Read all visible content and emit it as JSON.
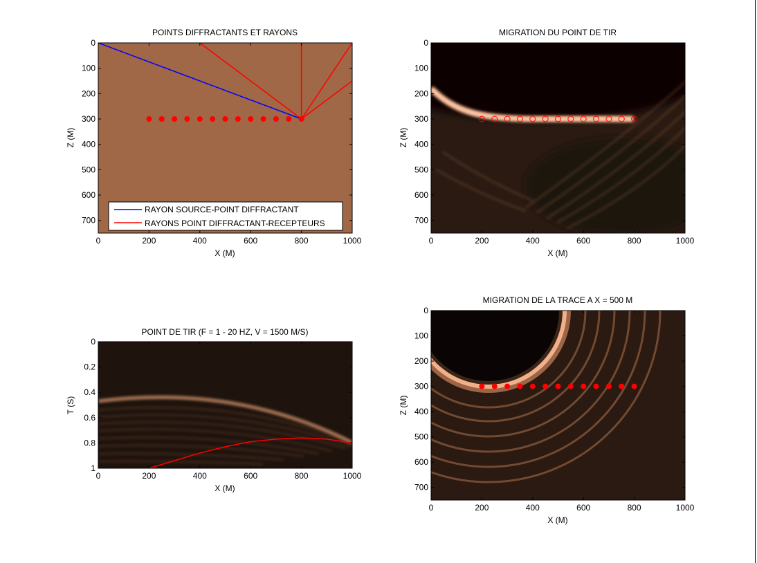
{
  "colors": {
    "background_brown": "#a06846",
    "ray_source": "#0000ff",
    "ray_receiver": "#ff0000",
    "points": "#ff0000",
    "image_dark": "#2a1a12",
    "image_bright": "#f5b48c"
  },
  "chart_data": [
    {
      "id": "rays",
      "type": "line",
      "title": "POINTS DIFFRACTANTS ET RAYONS",
      "xlabel": "X (M)",
      "ylabel": "Z (M)",
      "xlim": [
        0,
        1000
      ],
      "ylim": [
        750,
        0
      ],
      "xticks": [
        "0",
        "200",
        "400",
        "600",
        "800",
        "1000"
      ],
      "yticks": [
        "0",
        "100",
        "200",
        "300",
        "400",
        "500",
        "600",
        "700"
      ],
      "background": "#a06846",
      "legend": {
        "position": "bottom-right",
        "entries": [
          "RAYON SOURCE-POINT DIFFRACTANT",
          "RAYONS POINT DIFFRACTANT-RECEPTEURS"
        ]
      },
      "series": [
        {
          "name": "RAYON SOURCE-POINT DIFFRACTANT",
          "color": "#0000ff",
          "segments": [
            [
              [
                0,
                0
              ],
              [
                800,
                300
              ]
            ]
          ]
        },
        {
          "name": "RAYONS POINT DIFFRACTANT-RECEPTEURS",
          "color": "#ff0000",
          "segments": [
            [
              [
                800,
                300
              ],
              [
                400,
                0
              ]
            ],
            [
              [
                800,
                300
              ],
              [
                800,
                0
              ]
            ],
            [
              [
                800,
                300
              ],
              [
                1000,
                0
              ]
            ],
            [
              [
                800,
                300
              ],
              [
                1000,
                150
              ]
            ]
          ]
        }
      ],
      "points": {
        "style": "filled",
        "z": 300,
        "x": [
          200,
          250,
          300,
          350,
          400,
          450,
          500,
          550,
          600,
          650,
          700,
          750,
          800
        ]
      }
    },
    {
      "id": "shot-migration",
      "type": "heatmap",
      "title": "MIGRATION DU POINT DE TIR",
      "xlabel": "X (M)",
      "ylabel": "Z (M)",
      "xlim": [
        0,
        1000
      ],
      "ylim": [
        750,
        0
      ],
      "xticks": [
        "0",
        "200",
        "400",
        "600",
        "800",
        "1000"
      ],
      "yticks": [
        "0",
        "100",
        "200",
        "300",
        "400",
        "500",
        "600",
        "700"
      ],
      "points": {
        "style": "open",
        "z": 300,
        "x": [
          200,
          250,
          300,
          350,
          400,
          450,
          500,
          550,
          600,
          650,
          700,
          750,
          800
        ]
      }
    },
    {
      "id": "shot-record",
      "type": "heatmap",
      "title": "POINT DE TIR (F = 1 - 20 HZ, V = 1500 M/S)",
      "xlabel": "X (M)",
      "ylabel": "T (S)",
      "xlim": [
        0,
        1000
      ],
      "ylim": [
        1,
        0
      ],
      "xticks": [
        "0",
        "200",
        "400",
        "600",
        "800",
        "1000"
      ],
      "yticks": [
        "0",
        "0.2",
        "0.4",
        "0.6",
        "0.8",
        "1"
      ],
      "traveltime_curve": {
        "color": "#ff0000",
        "x": [
          200,
          300,
          400,
          500,
          600,
          700,
          800,
          900,
          1000
        ],
        "t": [
          1.0,
          0.94,
          0.88,
          0.83,
          0.79,
          0.77,
          0.76,
          0.77,
          0.8
        ]
      }
    },
    {
      "id": "trace-migration",
      "type": "heatmap",
      "title": "MIGRATION DE LA TRACE A X = 500 M",
      "xlabel": "X (M)",
      "ylabel": "Z (M)",
      "xlim": [
        0,
        1000
      ],
      "ylim": [
        750,
        0
      ],
      "xticks": [
        "0",
        "200",
        "400",
        "600",
        "800",
        "1000"
      ],
      "yticks": [
        "0",
        "100",
        "200",
        "300",
        "400",
        "500",
        "600",
        "700"
      ],
      "points": {
        "style": "filled",
        "z": 300,
        "x": [
          200,
          250,
          300,
          350,
          400,
          450,
          500,
          550,
          600,
          650,
          700,
          750,
          800
        ]
      }
    }
  ]
}
